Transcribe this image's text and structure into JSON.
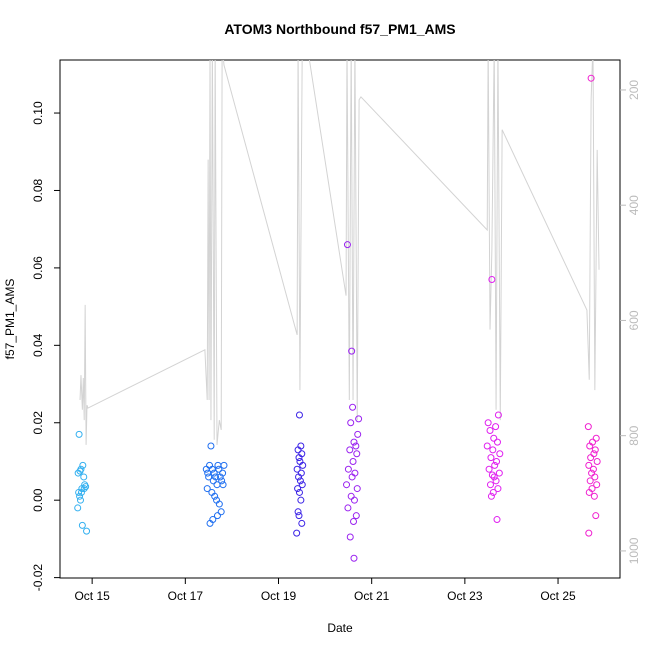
{
  "chart_data": {
    "type": "scatter",
    "title": "ATOM3 Northbound f57_PM1_AMS",
    "x_label": "Date",
    "y_label": "f57_PM1_AMS",
    "xlim": [
      14.31,
      26.33
    ],
    "xticks": [
      {
        "value": 15,
        "label": "Oct 15"
      },
      {
        "value": 17,
        "label": "Oct 17"
      },
      {
        "value": 19,
        "label": "Oct 19"
      },
      {
        "value": 21,
        "label": "Oct 21"
      },
      {
        "value": 23,
        "label": "Oct 23"
      },
      {
        "value": 25,
        "label": "Oct 25"
      }
    ],
    "ylim": [
      -0.0201,
      0.1137
    ],
    "yticks": [
      -0.02,
      {
        "value": 0,
        "label": "0.00"
      },
      0.02,
      0.04,
      0.06,
      0.08,
      {
        "value": 0.1,
        "label": "0.10"
      }
    ],
    "y2lim": [
      1047,
      148
    ],
    "y2ticks": [
      200,
      400,
      600,
      800,
      1000
    ],
    "y2_tick_color": "#bbbbbb",
    "series": [
      {
        "color": "#33b0f0",
        "x": [
          14.72,
          14.7,
          14.74,
          14.76,
          14.8,
          14.82,
          14.78,
          14.71,
          14.73,
          14.84,
          14.86,
          14.75,
          14.69,
          14.79,
          14.88,
          14.77,
          14.83
        ],
        "values": [
          0.017,
          0.007,
          0.0075,
          0.008,
          0.009,
          0.006,
          0.003,
          0.002,
          0.001,
          0.004,
          0.0035,
          0.0,
          -0.002,
          -0.0065,
          -0.008,
          0.002,
          0.003
        ]
      },
      {
        "color": "#1e6ef0",
        "x": [
          17.55,
          17.45,
          17.48,
          17.5,
          17.52,
          17.58,
          17.6,
          17.62,
          17.65,
          17.68,
          17.7,
          17.72,
          17.75,
          17.78,
          17.8,
          17.83,
          17.47,
          17.57,
          17.63,
          17.67,
          17.73,
          17.77,
          17.53,
          17.59,
          17.81,
          17.69
        ],
        "values": [
          0.014,
          0.008,
          0.007,
          0.006,
          0.009,
          0.008,
          0.005,
          0.007,
          0.006,
          0.004,
          0.009,
          0.008,
          0.006,
          0.005,
          0.007,
          0.009,
          0.003,
          0.002,
          0.001,
          0.0,
          -0.001,
          -0.003,
          -0.006,
          -0.005,
          0.004,
          -0.004
        ]
      },
      {
        "color": "#3a22e6",
        "x": [
          19.45,
          19.48,
          19.42,
          19.5,
          19.44,
          19.46,
          19.52,
          19.4,
          19.49,
          19.43,
          19.47,
          19.51,
          19.41,
          19.45,
          19.48,
          19.42,
          19.44,
          19.5,
          19.39
        ],
        "values": [
          0.022,
          0.014,
          0.013,
          0.012,
          0.011,
          0.01,
          0.009,
          0.008,
          0.007,
          0.006,
          0.005,
          0.004,
          0.003,
          0.002,
          0.0,
          -0.003,
          -0.004,
          -0.006,
          -0.0085
        ]
      },
      {
        "color": "#9a22f0",
        "x": [
          20.48,
          20.57,
          20.59,
          20.72,
          20.55,
          20.7,
          20.62,
          20.66,
          20.53,
          20.68,
          20.6,
          20.5,
          20.64,
          20.58,
          20.46,
          20.69,
          20.56,
          20.63,
          20.49,
          20.67,
          20.61,
          20.54,
          20.62
        ],
        "values": [
          0.066,
          0.0385,
          0.024,
          0.021,
          0.02,
          0.017,
          0.015,
          0.014,
          0.013,
          0.012,
          0.01,
          0.008,
          0.007,
          0.006,
          0.004,
          0.003,
          0.001,
          0.0,
          -0.002,
          -0.004,
          -0.0055,
          -0.0095,
          -0.015
        ]
      },
      {
        "color": "#e020f0",
        "x": [
          23.58,
          23.72,
          23.5,
          23.66,
          23.54,
          23.62,
          23.7,
          23.48,
          23.6,
          23.75,
          23.56,
          23.68,
          23.64,
          23.52,
          23.74,
          23.59,
          23.63,
          23.67,
          23.55,
          23.71,
          23.61,
          23.57,
          23.69
        ],
        "values": [
          0.057,
          0.022,
          0.02,
          0.019,
          0.018,
          0.016,
          0.015,
          0.014,
          0.013,
          0.012,
          0.011,
          0.01,
          0.009,
          0.008,
          0.007,
          0.0065,
          0.006,
          0.005,
          0.004,
          0.003,
          0.002,
          0.001,
          -0.005
        ]
      },
      {
        "color": "#f020d0",
        "x": [
          25.71,
          25.65,
          25.82,
          25.74,
          25.68,
          25.8,
          25.77,
          25.7,
          25.84,
          25.66,
          25.76,
          25.72,
          25.79,
          25.69,
          25.83,
          25.73,
          25.67,
          25.78,
          25.81,
          25.66
        ],
        "values": [
          0.109,
          0.019,
          0.016,
          0.015,
          0.014,
          0.013,
          0.012,
          0.011,
          0.01,
          0.009,
          0.008,
          0.007,
          0.006,
          0.005,
          0.004,
          0.003,
          0.002,
          0.001,
          -0.004,
          -0.0085
        ]
      },
      {
        "type": "line",
        "axis": "y2",
        "color": "#d3d3d3",
        "x": [
          14.74,
          14.76,
          14.79,
          14.81,
          14.83,
          14.85,
          14.87,
          14.89,
          14.91,
          17.42,
          17.47,
          17.49,
          17.51,
          17.53,
          17.55,
          17.58,
          17.62,
          17.64,
          17.68,
          17.73,
          17.77,
          17.79,
          17.83,
          19.4,
          19.42,
          19.46,
          19.51,
          19.57,
          19.61,
          20.45,
          20.47,
          20.52,
          20.56,
          20.6,
          20.64,
          20.69,
          20.73,
          20.77,
          23.48,
          23.5,
          23.54,
          23.58,
          23.63,
          23.67,
          23.71,
          23.76,
          23.8,
          25.62,
          25.67,
          25.71,
          25.75,
          25.79,
          25.84,
          25.86,
          25.88
        ],
        "values": [
          738,
          695,
          755,
          700,
          773,
          573,
          816,
          747,
          752,
          651,
          738,
          321,
          738,
          120,
          773,
          120,
          807,
          120,
          816,
          773,
          790,
          120,
          157,
          625,
          120,
          721,
          120,
          120,
          120,
          557,
          120,
          738,
          120,
          738,
          120,
          773,
          217,
          212,
          443,
          120,
          616,
          478,
          120,
          755,
          120,
          773,
          269,
          582,
          703,
          217,
          120,
          721,
          304,
          408,
          512
        ]
      }
    ]
  }
}
